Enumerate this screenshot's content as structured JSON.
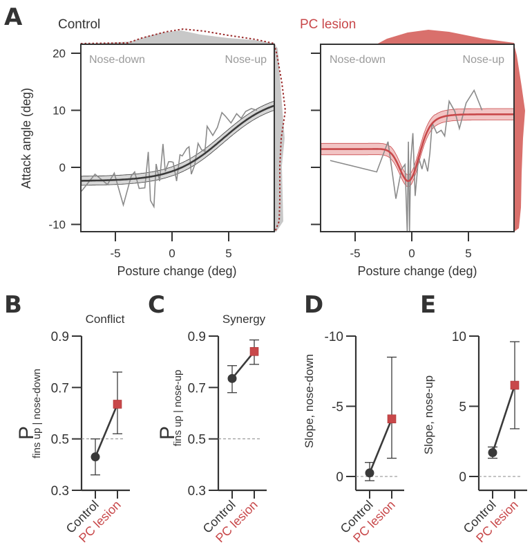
{
  "colors": {
    "control": "#3a3a3a",
    "lesion": "#c8484a",
    "lesion_fill": "#f2c4c4",
    "lesion_dist": "#d9706c",
    "control_dist": "#c8c8c8",
    "trace": "#8a8a8a",
    "annot": "#9a9a9a",
    "axis": "#333333"
  },
  "chart_data": [
    {
      "panel": "A",
      "id": "A-control",
      "type": "line",
      "title": "Control",
      "xlabel": "Posture change (deg)",
      "ylabel": "Attack angle (deg)",
      "xlim": [
        -8,
        9
      ],
      "ylim": [
        -11.5,
        21.5
      ],
      "xticks": [
        -5,
        0,
        5
      ],
      "xtick_labels": [
        "-5",
        "0",
        "5"
      ],
      "yticks": [
        20,
        10,
        0,
        -10
      ],
      "ytick_labels": [
        "20",
        "10",
        "0",
        "-10"
      ],
      "annotations": [
        "Nose-down",
        "Nose-up"
      ],
      "fit": {
        "type": "sigmoid",
        "low": -2.4,
        "high": 12.5,
        "center": 4.5,
        "width": 2.2,
        "ci_halfwidth": 0.8
      },
      "raw_trace": {
        "x": [
          -8,
          -6.8,
          -5.7,
          -5.1,
          -4.3,
          -3.6,
          -3.3,
          -2.9,
          -2.4,
          -2.1,
          -1.9,
          -1.6,
          -1.4,
          -1.1,
          -0.8,
          -0.6,
          -0.3,
          -0.1,
          0.1,
          0.4,
          0.7,
          0.9,
          1.3,
          1.5,
          1.7,
          2.0,
          2.3,
          2.6,
          2.9,
          3.1,
          3.6,
          4.0,
          4.4,
          4.7,
          5.2,
          5.7,
          6.1,
          6.5,
          7.0,
          7.5
        ],
        "y": [
          -4.2,
          -1.2,
          -3.0,
          -1.0,
          -6.6,
          -1.5,
          -0.8,
          -3.7,
          -3.6,
          2.7,
          -5.8,
          -6.9,
          0.6,
          -2.4,
          4.1,
          -0.7,
          1.0,
          1.0,
          0.9,
          -2.4,
          2.2,
          2.0,
          3.3,
          3.6,
          -1.2,
          0.4,
          4.2,
          3.1,
          2.8,
          7.2,
          5.6,
          7.0,
          9.6,
          9.0,
          7.8,
          9.4,
          8.6,
          9.8,
          10.3,
          10.0
        ]
      },
      "marginal_top": "gray filled density, with red dotted PC lesion density overlay",
      "marginal_right": "gray filled density, with red dotted PC lesion density overlay"
    },
    {
      "panel": "A",
      "id": "A-lesion",
      "type": "line",
      "title": "PC lesion",
      "xlabel": "Posture change (deg)",
      "ylabel": "",
      "xlim": [
        -8,
        9
      ],
      "ylim": [
        -11.5,
        21.5
      ],
      "xticks": [
        -5,
        0,
        5
      ],
      "xtick_labels": [
        "-5",
        "0",
        "5"
      ],
      "yticks": [
        20,
        10,
        0,
        -10
      ],
      "annotations": [
        "Nose-down",
        "Nose-up"
      ],
      "fit": {
        "left": 3.2,
        "right": 9.3,
        "dip_x": -0.2,
        "dip_y": -3.2,
        "ci_halfwidth": 1.0
      },
      "raw_trace": {
        "x": [
          -7.2,
          -3.1,
          -2.1,
          -1.4,
          -0.9,
          -0.6,
          -0.4,
          -0.3,
          -0.2,
          -0.1,
          0.1,
          0.3,
          0.6,
          0.9,
          1.1,
          1.4,
          1.6,
          1.8,
          2.2,
          2.6,
          2.9,
          3.3,
          3.8,
          4.2,
          4.8,
          5.5,
          6.2
        ],
        "y": [
          1.2,
          -0.8,
          4.5,
          -5.5,
          -0.3,
          0.5,
          -12,
          4.5,
          -12,
          1.0,
          6.0,
          -5,
          1.8,
          -0.3,
          1.5,
          -0.7,
          2.5,
          7.8,
          6.0,
          6.5,
          5.5,
          11.6,
          9.8,
          6.8,
          11.3,
          13.5,
          10.0
        ]
      }
    },
    {
      "panel": "B",
      "type": "scatter",
      "title": "Conflict",
      "ylabel": "P fins up | nose-down",
      "ylabel_main": "P",
      "ylabel_sub": "fins up | nose-down",
      "categories": [
        "Control",
        "PC lesion"
      ],
      "values": [
        0.43,
        0.635
      ],
      "err_low": [
        0.36,
        0.52
      ],
      "err_high": [
        0.5,
        0.76
      ],
      "ylim": [
        0.3,
        0.9
      ],
      "yticks": [
        0.9,
        0.7,
        0.5,
        0.3
      ],
      "ytick_labels": [
        "0.9",
        "0.7",
        "0.5",
        "0.3"
      ],
      "reference_line": 0.5
    },
    {
      "panel": "C",
      "type": "scatter",
      "title": "Synergy",
      "ylabel": "P fins up | nose-up",
      "ylabel_main": "P",
      "ylabel_sub": "fins up | nose-up",
      "categories": [
        "Control",
        "PC lesion"
      ],
      "values": [
        0.735,
        0.84
      ],
      "err_low": [
        0.68,
        0.79
      ],
      "err_high": [
        0.785,
        0.885
      ],
      "ylim": [
        0.3,
        0.9
      ],
      "yticks": [
        0.9,
        0.7,
        0.5,
        0.3
      ],
      "ytick_labels": [
        "0.9",
        "0.7",
        "0.5",
        "0.3"
      ],
      "reference_line": 0.5
    },
    {
      "panel": "D",
      "type": "scatter",
      "title": "",
      "ylabel": "Slope, nose-down",
      "categories": [
        "Control",
        "PC lesion"
      ],
      "values": [
        -0.25,
        -4.1
      ],
      "err_low": [
        0.3,
        -1.3
      ],
      "err_high": [
        -1.0,
        -8.5
      ],
      "ylim": [
        1.0,
        -10.0
      ],
      "yticks": [
        -10,
        -5,
        0
      ],
      "ytick_labels": [
        "-10",
        "-5",
        "0"
      ],
      "reference_line": 0
    },
    {
      "panel": "E",
      "type": "scatter",
      "title": "",
      "ylabel": "Slope, nose-up",
      "categories": [
        "Control",
        "PC lesion"
      ],
      "values": [
        1.7,
        6.5
      ],
      "err_low": [
        1.3,
        3.4
      ],
      "err_high": [
        2.1,
        9.6
      ],
      "ylim": [
        -1.0,
        10.0
      ],
      "yticks": [
        10,
        5,
        0
      ],
      "ytick_labels": [
        "10",
        "5",
        "0"
      ],
      "reference_line": 0
    }
  ],
  "panel_letters": [
    "A",
    "B",
    "C",
    "D",
    "E"
  ],
  "labels": {
    "control_title": "Control",
    "lesion_title": "PC lesion",
    "nose_down": "Nose-down",
    "nose_up": "Nose-up",
    "xlabel": "Posture change (deg)",
    "ylabel_A": "Attack angle (deg)",
    "conflict": "Conflict",
    "synergy": "Synergy",
    "p": "P",
    "sub_B": "fins up | nose-down",
    "sub_C": "fins up | nose-up",
    "ylabel_D": "Slope, nose-down",
    "ylabel_E": "Slope, nose-up",
    "cat_control": "Control",
    "cat_lesion": "PC lesion"
  }
}
